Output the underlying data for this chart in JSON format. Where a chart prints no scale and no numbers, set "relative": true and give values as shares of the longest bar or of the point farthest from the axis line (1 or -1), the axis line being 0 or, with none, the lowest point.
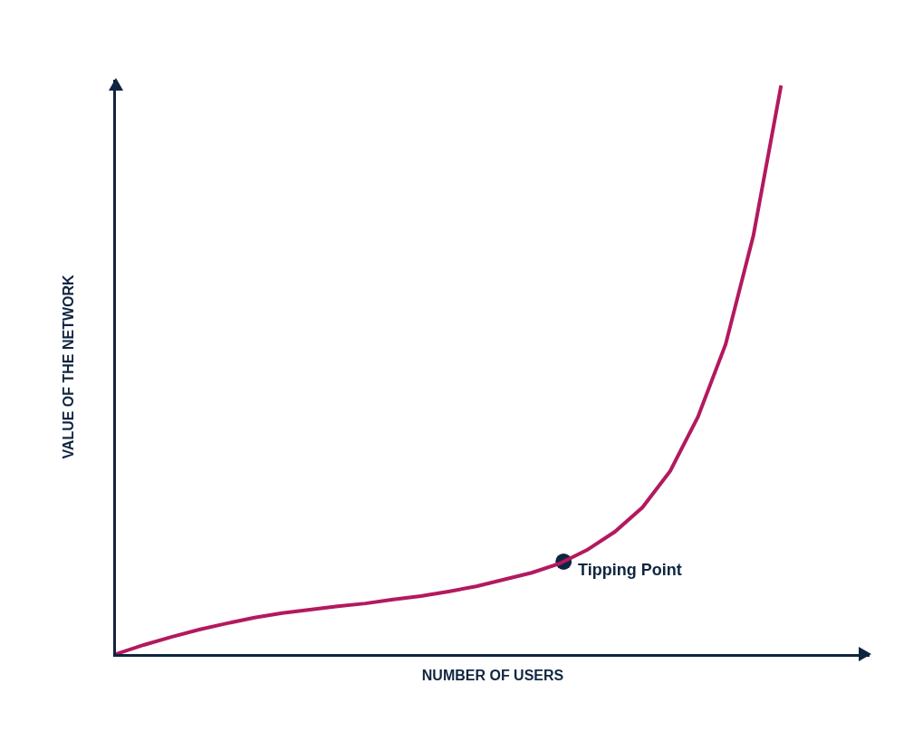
{
  "chart_data": {
    "type": "line",
    "relative": true,
    "xlabel": "NUMBER OF USERS",
    "ylabel": "VALUE OF THE NETWORK",
    "tick_labels": false,
    "categories": [
      null,
      null,
      null,
      null,
      null,
      null,
      null,
      null,
      null,
      null,
      null,
      null,
      null,
      null,
      null,
      null,
      null,
      null,
      null,
      null,
      null,
      null,
      null,
      null,
      null
    ],
    "series": [
      {
        "color": "#b3195f",
        "values": [
          0,
          0.016,
          0.03,
          0.043,
          0.054,
          0.064,
          0.072,
          0.078,
          0.084,
          0.089,
          0.096,
          0.102,
          0.11,
          0.119,
          0.131,
          0.143,
          0.159,
          0.183,
          0.215,
          0.258,
          0.322,
          0.417,
          0.545,
          0.736,
          1
        ]
      }
    ],
    "annotations": [
      "Tipping Point"
    ]
  }
}
